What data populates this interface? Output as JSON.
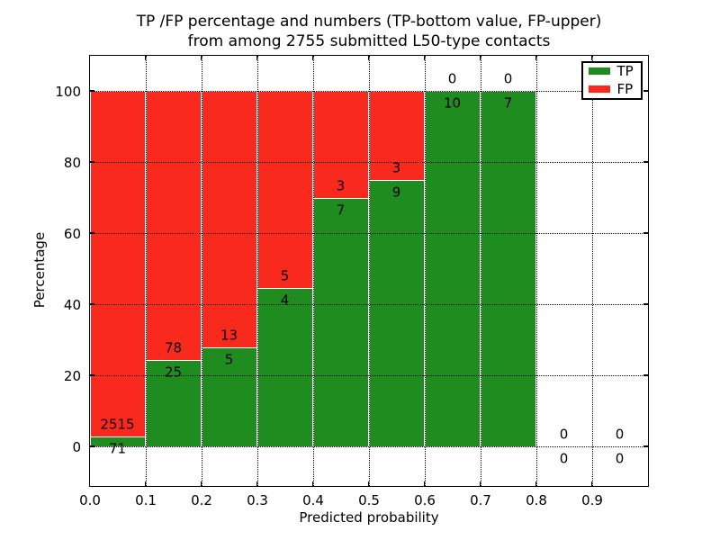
{
  "chart_data": {
    "type": "bar",
    "stacked": true,
    "title_line1": "TP /FP percentage and numbers (TP-bottom value, FP-upper)",
    "title_line2": "from among 2755 submitted L50-type contacts",
    "xlabel": "Predicted probability",
    "ylabel": "Percentage",
    "xlim": [
      0.0,
      1.0
    ],
    "ylim": [
      -11,
      110
    ],
    "grid": "dotted",
    "legend_position": "upper right",
    "bin_width": 0.1,
    "bin_start": [
      0.0,
      0.1,
      0.2,
      0.3,
      0.4,
      0.5,
      0.6,
      0.7,
      0.8,
      0.9
    ],
    "categories": [
      "0.0-0.1",
      "0.1-0.2",
      "0.2-0.3",
      "0.3-0.4",
      "0.4-0.5",
      "0.5-0.6",
      "0.6-0.7",
      "0.7-0.8",
      "0.8-0.9",
      "0.9-1.0"
    ],
    "series": [
      {
        "name": "TP",
        "color": "#1f8c1f",
        "counts": [
          71,
          25,
          5,
          4,
          7,
          9,
          10,
          7,
          0,
          0
        ],
        "pct": [
          2.75,
          24.27,
          27.78,
          44.44,
          70.0,
          75.0,
          100.0,
          100.0,
          0.0,
          0.0
        ]
      },
      {
        "name": "FP",
        "color": "#fa291d",
        "counts": [
          2515,
          78,
          13,
          5,
          3,
          3,
          0,
          0,
          0,
          0
        ],
        "pct": [
          97.25,
          75.73,
          72.22,
          55.56,
          30.0,
          25.0,
          0.0,
          0.0,
          0.0,
          0.0
        ]
      }
    ],
    "xticks": [
      "0.0",
      "0.1",
      "0.2",
      "0.3",
      "0.4",
      "0.5",
      "0.6",
      "0.7",
      "0.8",
      "0.9"
    ],
    "xtick_values": [
      0.0,
      0.1,
      0.2,
      0.3,
      0.4,
      0.5,
      0.6,
      0.7,
      0.8,
      0.9
    ],
    "yticks": [
      "0",
      "20",
      "40",
      "60",
      "80",
      "100"
    ],
    "ytick_values": [
      0,
      20,
      40,
      60,
      80,
      100
    ],
    "edge_color": "#ffffff",
    "text_color": "#000000"
  }
}
